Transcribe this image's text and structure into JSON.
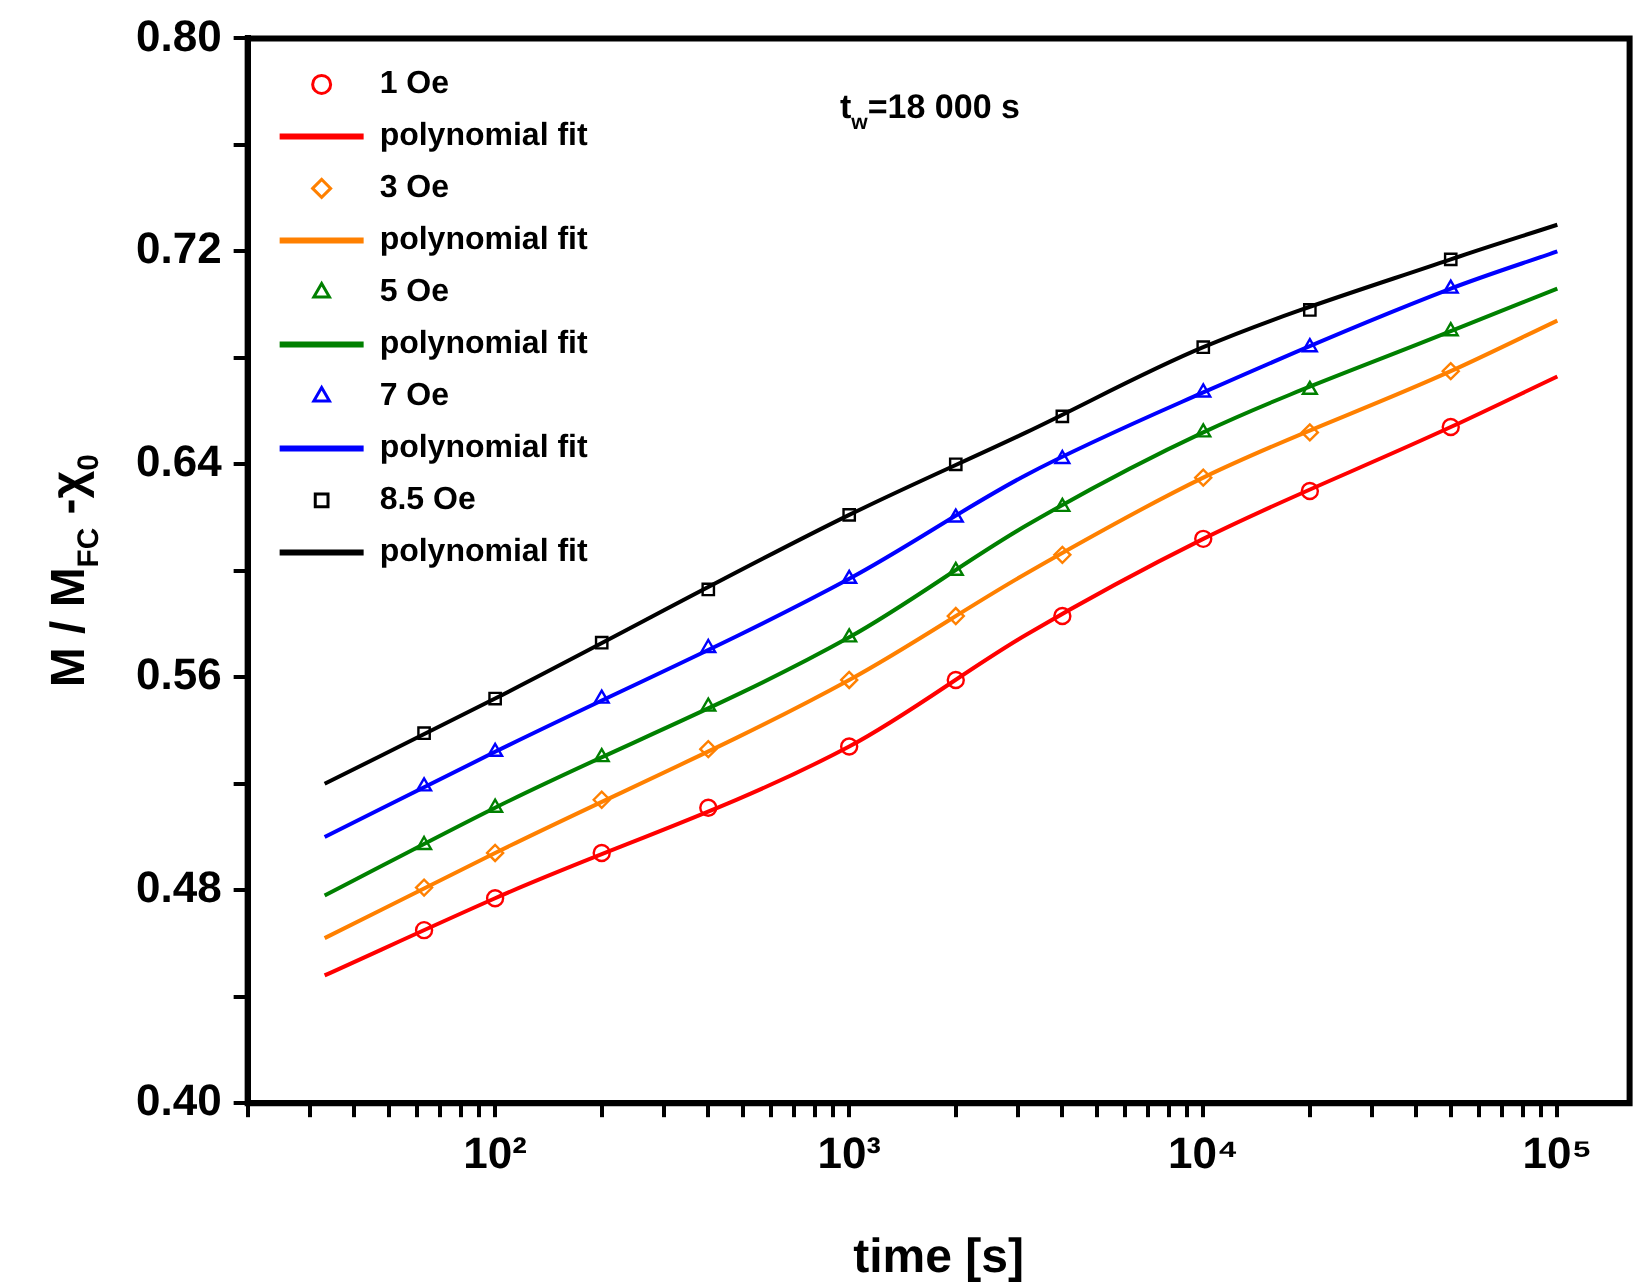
{
  "chart_data": {
    "type": "scatter",
    "xlabel": "time [s]",
    "ylabel": "M / M$_{FC}$ -χ$_{0}$",
    "annotations": [
      "t$_{w}$=18 000 s"
    ],
    "log": "x",
    "grid": false,
    "legend": "top left",
    "xlim": [
      20,
      160000
    ],
    "xticks": [
      {
        "value": 20,
        "label": null
      },
      {
        "value": 30,
        "label": null
      },
      {
        "value": 40,
        "label": null
      },
      {
        "value": 50,
        "label": null
      },
      {
        "value": 60,
        "label": null
      },
      {
        "value": 70,
        "label": null
      },
      {
        "value": 80,
        "label": null
      },
      {
        "value": 90,
        "label": null
      },
      {
        "value": 100,
        "label": "10²"
      },
      {
        "value": 200,
        "label": null
      },
      {
        "value": 300,
        "label": null
      },
      {
        "value": 400,
        "label": null
      },
      {
        "value": 500,
        "label": null
      },
      {
        "value": 600,
        "label": null
      },
      {
        "value": 700,
        "label": null
      },
      {
        "value": 800,
        "label": null
      },
      {
        "value": 900,
        "label": null
      },
      {
        "value": 1000,
        "label": "10³"
      },
      {
        "value": 2000,
        "label": null
      },
      {
        "value": 3000,
        "label": null
      },
      {
        "value": 4000,
        "label": null
      },
      {
        "value": 5000,
        "label": null
      },
      {
        "value": 6000,
        "label": null
      },
      {
        "value": 7000,
        "label": null
      },
      {
        "value": 8000,
        "label": null
      },
      {
        "value": 9000,
        "label": null
      },
      {
        "value": 10000,
        "label": "10⁴"
      },
      {
        "value": 20000,
        "label": null
      },
      {
        "value": 30000,
        "label": null
      },
      {
        "value": 40000,
        "label": null
      },
      {
        "value": 50000,
        "label": null
      },
      {
        "value": 60000,
        "label": null
      },
      {
        "value": 70000,
        "label": null
      },
      {
        "value": 80000,
        "label": null
      },
      {
        "value": 90000,
        "label": null
      },
      {
        "value": 100000,
        "label": "10⁵"
      }
    ],
    "ylim": [
      0.4,
      0.8
    ],
    "yticks": [
      {
        "value": 0.4,
        "label": "0.40"
      },
      {
        "value": 0.44,
        "label": null
      },
      {
        "value": 0.48,
        "label": "0.48"
      },
      {
        "value": 0.52,
        "label": null
      },
      {
        "value": 0.56,
        "label": "0.56"
      },
      {
        "value": 0.6,
        "label": null
      },
      {
        "value": 0.64,
        "label": "0.64"
      },
      {
        "value": 0.68,
        "label": null
      },
      {
        "value": 0.72,
        "label": "0.72"
      },
      {
        "value": 0.76,
        "label": null
      },
      {
        "value": 0.8,
        "label": "0.80"
      }
    ],
    "series": [
      {
        "name": "1 Oe",
        "color": "#ff0000",
        "marker": "circle",
        "x": [
          63,
          100,
          200,
          400,
          1000,
          2000,
          4000,
          10000,
          20000,
          50000
        ],
        "values": [
          0.465,
          0.477,
          0.494,
          0.511,
          0.534,
          0.559,
          0.583,
          0.612,
          0.63,
          0.654
        ]
      },
      {
        "name": "polynomial fit",
        "type": "line",
        "color": "#ff0000",
        "marker": "none",
        "x": [
          33,
          100,
          1000,
          3162,
          10000,
          50000,
          100000
        ],
        "values": [
          0.448,
          0.477,
          0.534,
          0.576,
          0.612,
          0.654,
          0.673
        ]
      },
      {
        "name": "3 Oe",
        "color": "#ff8000",
        "marker": "diamond",
        "x": [
          63,
          100,
          200,
          400,
          1000,
          2000,
          4000,
          10000,
          20000,
          50000
        ],
        "values": [
          0.481,
          0.494,
          0.514,
          0.533,
          0.559,
          0.583,
          0.606,
          0.635,
          0.652,
          0.675
        ]
      },
      {
        "name": "polynomial fit",
        "type": "line",
        "color": "#ff8000",
        "marker": "none",
        "x": [
          33,
          100,
          1000,
          3162,
          10000,
          50000,
          100000
        ],
        "values": [
          0.462,
          0.494,
          0.559,
          0.599,
          0.635,
          0.675,
          0.694
        ]
      },
      {
        "name": "5 Oe",
        "color": "#008000",
        "marker": "triangle",
        "x": [
          63,
          100,
          200,
          400,
          1000,
          2000,
          4000,
          10000,
          20000,
          50000
        ],
        "values": [
          0.497,
          0.511,
          0.53,
          0.549,
          0.575,
          0.6,
          0.624,
          0.652,
          0.668,
          0.69
        ]
      },
      {
        "name": "polynomial fit",
        "type": "line",
        "color": "#008000",
        "marker": "none",
        "x": [
          33,
          100,
          1000,
          3162,
          10000,
          50000,
          100000
        ],
        "values": [
          0.478,
          0.511,
          0.575,
          0.617,
          0.652,
          0.69,
          0.706
        ]
      },
      {
        "name": "7 Oe",
        "color": "#0000ff",
        "marker": "triangle",
        "x": [
          63,
          100,
          200,
          400,
          1000,
          2000,
          4000,
          10000,
          20000,
          50000
        ],
        "values": [
          0.519,
          0.532,
          0.552,
          0.571,
          0.597,
          0.62,
          0.642,
          0.667,
          0.684,
          0.706
        ]
      },
      {
        "name": "polynomial fit",
        "type": "line",
        "color": "#0000ff",
        "marker": "none",
        "x": [
          33,
          100,
          1000,
          3162,
          10000,
          50000,
          100000
        ],
        "values": [
          0.5,
          0.532,
          0.597,
          0.636,
          0.667,
          0.706,
          0.72
        ]
      },
      {
        "name": "8.5 Oe",
        "color": "#000000",
        "marker": "square",
        "x": [
          63,
          100,
          200,
          400,
          1000,
          2000,
          4000,
          10000,
          20000,
          50000
        ],
        "values": [
          0.539,
          0.552,
          0.573,
          0.593,
          0.621,
          0.64,
          0.658,
          0.684,
          0.698,
          0.717
        ]
      },
      {
        "name": "polynomial fit",
        "type": "line",
        "color": "#000000",
        "marker": "none",
        "x": [
          33,
          100,
          1000,
          3162,
          10000,
          50000,
          100000
        ],
        "values": [
          0.52,
          0.552,
          0.621,
          0.652,
          0.684,
          0.717,
          0.73
        ]
      }
    ]
  }
}
